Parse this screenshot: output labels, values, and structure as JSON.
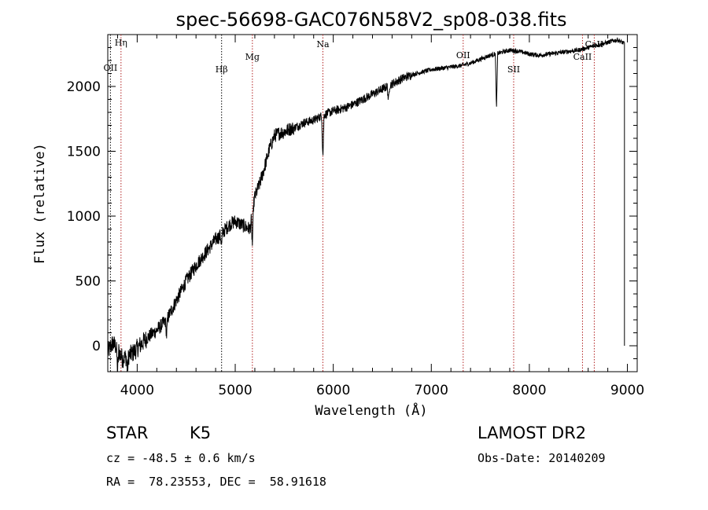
{
  "chart_data": {
    "type": "line",
    "title": "spec-56698-GAC076N58V2_sp08-038.fits",
    "xlabel": "Wavelength (Å)",
    "ylabel": "Flux (relative)",
    "xlim": [
      3700,
      9100
    ],
    "ylim": [
      -200,
      2400
    ],
    "xticks": [
      4000,
      5000,
      6000,
      7000,
      8000,
      9000
    ],
    "yticks": [
      0,
      500,
      1000,
      1500,
      2000
    ],
    "grid": false,
    "spectrum_anchors": {
      "x": [
        3700,
        3750,
        3800,
        3850,
        3900,
        3950,
        4000,
        4100,
        4200,
        4300,
        4400,
        4500,
        4600,
        4700,
        4800,
        4850,
        4900,
        4950,
        5000,
        5050,
        5100,
        5150,
        5200,
        5250,
        5300,
        5350,
        5400,
        5450,
        5500,
        5550,
        5600,
        5700,
        5800,
        5900,
        6000,
        6100,
        6200,
        6300,
        6400,
        6500,
        6600,
        6700,
        6800,
        6900,
        7000,
        7100,
        7200,
        7300,
        7400,
        7500,
        7600,
        7650,
        7700,
        7800,
        7900,
        8000,
        8100,
        8200,
        8300,
        8400,
        8500,
        8600,
        8700,
        8800,
        8900,
        8970
      ],
      "y": [
        -50,
        20,
        -20,
        -100,
        -80,
        -60,
        -20,
        60,
        120,
        200,
        350,
        500,
        620,
        720,
        820,
        850,
        900,
        940,
        960,
        940,
        920,
        900,
        1150,
        1250,
        1380,
        1520,
        1620,
        1640,
        1650,
        1670,
        1680,
        1720,
        1740,
        1780,
        1810,
        1830,
        1860,
        1900,
        1940,
        1980,
        2020,
        2060,
        2090,
        2110,
        2130,
        2140,
        2150,
        2160,
        2180,
        2210,
        2240,
        2250,
        2260,
        2280,
        2270,
        2250,
        2240,
        2250,
        2260,
        2270,
        2280,
        2300,
        2320,
        2340,
        2360,
        2330
      ]
    },
    "absorption_features": [
      {
        "x": 3800,
        "depth": 180
      },
      {
        "x": 3900,
        "depth": 120
      },
      {
        "x": 4300,
        "depth": 120
      },
      {
        "x": 4861,
        "depth": 80
      },
      {
        "x": 5175,
        "depth": 250
      },
      {
        "x": 5894,
        "depth": 330
      },
      {
        "x": 6563,
        "depth": 120
      },
      {
        "x": 7665,
        "depth": 420
      }
    ],
    "line_markers": [
      {
        "label": "Hη",
        "x": 3835,
        "color": "#b22222",
        "style": "dotted"
      },
      {
        "label": "OII",
        "x": 3727,
        "color": "#000000",
        "style": "dotted"
      },
      {
        "label": "Hβ",
        "x": 4861,
        "color": "#000000",
        "style": "dotted"
      },
      {
        "label": "Mg",
        "x": 5175,
        "color": "#b22222",
        "style": "dotted"
      },
      {
        "label": "Na",
        "x": 5894,
        "color": "#b22222",
        "style": "dotted"
      },
      {
        "label": "OII",
        "x": 7325,
        "color": "#b22222",
        "style": "dotted"
      },
      {
        "label": "SII",
        "x": 7840,
        "color": "#b22222",
        "style": "dotted"
      },
      {
        "label": "CaII",
        "x": 8542,
        "color": "#b22222",
        "style": "dotted"
      },
      {
        "label": "CaII",
        "x": 8662,
        "color": "#b22222",
        "style": "dotted"
      }
    ]
  },
  "info": {
    "object_class": "STAR",
    "subclass": "K5",
    "survey": "LAMOST DR2",
    "redshift": "cz = -48.5 ± 0.6 km/s",
    "obs_date": "Obs-Date: 20140209",
    "coordinates": "RA =  78.23553, DEC =  58.91618"
  }
}
